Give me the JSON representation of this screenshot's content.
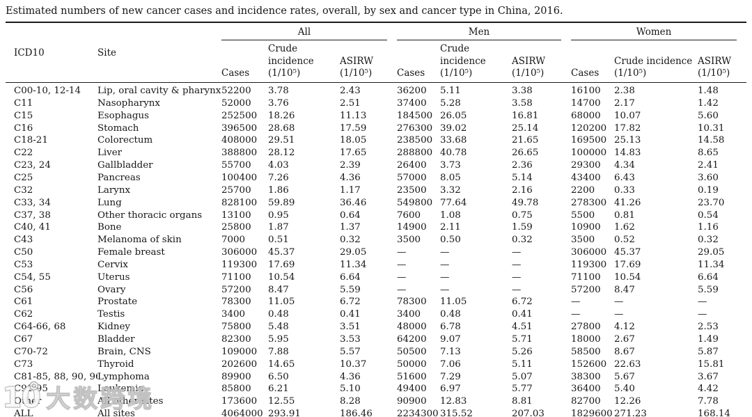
{
  "title": "Estimated numbers of new cancer cases and incidence rates, overall, by sex and cancer type in China, 2016.",
  "table": {
    "header": {
      "icd10": "ICD10",
      "site": "Site",
      "groups": [
        "All",
        "Men",
        "Women"
      ],
      "sub": [
        "Cases",
        "Crude incidence (1/10⁵)",
        "ASIRW (1/10⁵)"
      ]
    },
    "rows": [
      {
        "icd10": "C00-10, 12-14",
        "site": "Lip, oral cavity & pharynx",
        "all": [
          "52200",
          "3.78",
          "2.43"
        ],
        "men": [
          "36200",
          "5.11",
          "3.38"
        ],
        "women": [
          "16100",
          "2.38",
          "1.48"
        ]
      },
      {
        "icd10": "C11",
        "site": "Nasopharynx",
        "all": [
          "52000",
          "3.76",
          "2.51"
        ],
        "men": [
          "37400",
          "5.28",
          "3.58"
        ],
        "women": [
          "14700",
          "2.17",
          "1.42"
        ]
      },
      {
        "icd10": "C15",
        "site": "Esophagus",
        "all": [
          "252500",
          "18.26",
          "11.13"
        ],
        "men": [
          "184500",
          "26.05",
          "16.81"
        ],
        "women": [
          "68000",
          "10.07",
          "5.60"
        ]
      },
      {
        "icd10": "C16",
        "site": "Stomach",
        "all": [
          "396500",
          "28.68",
          "17.59"
        ],
        "men": [
          "276300",
          "39.02",
          "25.14"
        ],
        "women": [
          "120200",
          "17.82",
          "10.31"
        ]
      },
      {
        "icd10": "C18-21",
        "site": "Colorectum",
        "all": [
          "408000",
          "29.51",
          "18.05"
        ],
        "men": [
          "238500",
          "33.68",
          "21.65"
        ],
        "women": [
          "169500",
          "25.13",
          "14.58"
        ]
      },
      {
        "icd10": "C22",
        "site": "Liver",
        "all": [
          "388800",
          "28.12",
          "17.65"
        ],
        "men": [
          "288800",
          "40.78",
          "26.65"
        ],
        "women": [
          "100000",
          "14.83",
          "8.65"
        ]
      },
      {
        "icd10": "C23, 24",
        "site": "Gallbladder",
        "all": [
          "55700",
          "4.03",
          "2.39"
        ],
        "men": [
          "26400",
          "3.73",
          "2.36"
        ],
        "women": [
          "29300",
          "4.34",
          "2.41"
        ]
      },
      {
        "icd10": "C25",
        "site": "Pancreas",
        "all": [
          "100400",
          "7.26",
          "4.36"
        ],
        "men": [
          "57000",
          "8.05",
          "5.14"
        ],
        "women": [
          "43400",
          "6.43",
          "3.60"
        ]
      },
      {
        "icd10": "C32",
        "site": "Larynx",
        "all": [
          "25700",
          "1.86",
          "1.17"
        ],
        "men": [
          "23500",
          "3.32",
          "2.16"
        ],
        "women": [
          "2200",
          "0.33",
          "0.19"
        ]
      },
      {
        "icd10": "C33, 34",
        "site": "Lung",
        "all": [
          "828100",
          "59.89",
          "36.46"
        ],
        "men": [
          "549800",
          "77.64",
          "49.78"
        ],
        "women": [
          "278300",
          "41.26",
          "23.70"
        ]
      },
      {
        "icd10": "C37, 38",
        "site": "Other thoracic organs",
        "all": [
          "13100",
          "0.95",
          "0.64"
        ],
        "men": [
          "7600",
          "1.08",
          "0.75"
        ],
        "women": [
          "5500",
          "0.81",
          "0.54"
        ]
      },
      {
        "icd10": "C40, 41",
        "site": "Bone",
        "all": [
          "25800",
          "1.87",
          "1.37"
        ],
        "men": [
          "14900",
          "2.11",
          "1.59"
        ],
        "women": [
          "10900",
          "1.62",
          "1.16"
        ]
      },
      {
        "icd10": "C43",
        "site": "Melanoma of skin",
        "all": [
          "7000",
          "0.51",
          "0.32"
        ],
        "men": [
          "3500",
          "0.50",
          "0.32"
        ],
        "women": [
          "3500",
          "0.52",
          "0.32"
        ]
      },
      {
        "icd10": "C50",
        "site": "Female breast",
        "all": [
          "306000",
          "45.37",
          "29.05"
        ],
        "men": [
          "—",
          "—",
          "—"
        ],
        "women": [
          "306000",
          "45.37",
          "29.05"
        ]
      },
      {
        "icd10": "C53",
        "site": "Cervix",
        "all": [
          "119300",
          "17.69",
          "11.34"
        ],
        "men": [
          "—",
          "—",
          "—"
        ],
        "women": [
          "119300",
          "17.69",
          "11.34"
        ]
      },
      {
        "icd10": "C54, 55",
        "site": "Uterus",
        "all": [
          "71100",
          "10.54",
          "6.64"
        ],
        "men": [
          "—",
          "—",
          "—"
        ],
        "women": [
          "71100",
          "10.54",
          "6.64"
        ]
      },
      {
        "icd10": "C56",
        "site": "Ovary",
        "all": [
          "57200",
          "8.47",
          "5.59"
        ],
        "men": [
          "—",
          "—",
          "—"
        ],
        "women": [
          "57200",
          "8.47",
          "5.59"
        ]
      },
      {
        "icd10": "C61",
        "site": "Prostate",
        "all": [
          "78300",
          "11.05",
          "6.72"
        ],
        "men": [
          "78300",
          "11.05",
          "6.72"
        ],
        "women": [
          "—",
          "—",
          "—"
        ]
      },
      {
        "icd10": "C62",
        "site": "Testis",
        "all": [
          "3400",
          "0.48",
          "0.41"
        ],
        "men": [
          "3400",
          "0.48",
          "0.41"
        ],
        "women": [
          "—",
          "—",
          "—"
        ]
      },
      {
        "icd10": "C64-66, 68",
        "site": "Kidney",
        "all": [
          "75800",
          "5.48",
          "3.51"
        ],
        "men": [
          "48000",
          "6.78",
          "4.51"
        ],
        "women": [
          "27800",
          "4.12",
          "2.53"
        ]
      },
      {
        "icd10": "C67",
        "site": "Bladder",
        "all": [
          "82300",
          "5.95",
          "3.53"
        ],
        "men": [
          "64200",
          "9.07",
          "5.71"
        ],
        "women": [
          "18000",
          "2.67",
          "1.49"
        ]
      },
      {
        "icd10": "C70-72",
        "site": "Brain, CNS",
        "all": [
          "109000",
          "7.88",
          "5.57"
        ],
        "men": [
          "50500",
          "7.13",
          "5.26"
        ],
        "women": [
          "58500",
          "8.67",
          "5.87"
        ]
      },
      {
        "icd10": "C73",
        "site": "Thyroid",
        "all": [
          "202600",
          "14.65",
          "10.37"
        ],
        "men": [
          "50000",
          "7.06",
          "5.11"
        ],
        "women": [
          "152600",
          "22.63",
          "15.81"
        ]
      },
      {
        "icd10": "C81-85, 88, 90, 96",
        "site": "Lymphoma",
        "all": [
          "89900",
          "6.50",
          "4.36"
        ],
        "men": [
          "51600",
          "7.29",
          "5.07"
        ],
        "women": [
          "38300",
          "5.67",
          "3.67"
        ]
      },
      {
        "icd10": "C91-95",
        "site": "Leukemia",
        "all": [
          "85800",
          "6.21",
          "5.10"
        ],
        "men": [
          "49400",
          "6.97",
          "5.77"
        ],
        "women": [
          "36400",
          "5.40",
          "4.42"
        ]
      },
      {
        "icd10": "Other",
        "site": "All other sites",
        "all": [
          "173600",
          "12.55",
          "8.28"
        ],
        "men": [
          "90900",
          "12.83",
          "8.81"
        ],
        "women": [
          "82700",
          "12.26",
          "7.78"
        ]
      },
      {
        "icd10": "ALL",
        "site": "All sites",
        "all": [
          "4064000",
          "293.91",
          "186.46"
        ],
        "men": [
          "2234300",
          "315.52",
          "207.03"
        ],
        "women": [
          "1829600",
          "271.23",
          "168.14"
        ]
      }
    ]
  },
  "watermark": {
    "logo": "10̊̊",
    "text": "大数跨境"
  }
}
